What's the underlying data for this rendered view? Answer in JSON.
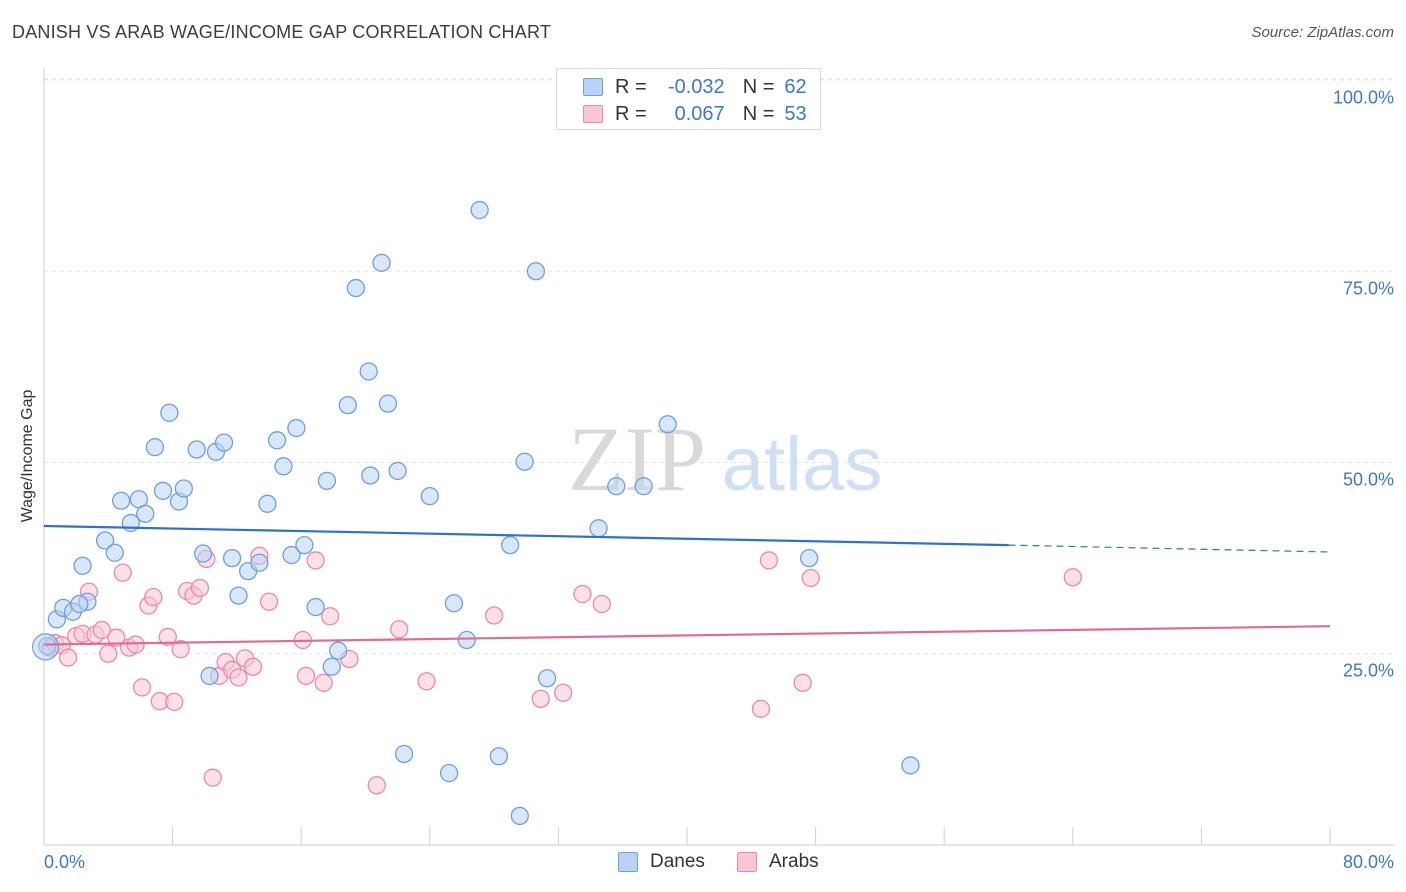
{
  "header": {
    "title": "DANISH VS ARAB WAGE/INCOME GAP CORRELATION CHART",
    "source": "Source: ZipAtlas.com"
  },
  "legend": {
    "rows": [
      {
        "r_label": "R =",
        "r_value": "-0.032",
        "n_label": "N =",
        "n_value": "62"
      },
      {
        "r_label": "R =",
        "r_value": "0.067",
        "n_label": "N =",
        "n_value": "53"
      }
    ]
  },
  "watermark": {
    "zip": "ZIP",
    "atlas": "atlas"
  },
  "colors": {
    "danes_fill": "#b8d3f5",
    "danes_stroke": "#6e9fdc",
    "danes_line": "#2e72c9",
    "arabs_fill": "#f9c6d6",
    "arabs_stroke": "#e98aa8",
    "arabs_line": "#e06b96",
    "tick_text": "#3b78c8"
  },
  "chart_data": {
    "type": "scatter",
    "title": "DANISH VS ARAB WAGE/INCOME GAP CORRELATION CHART",
    "xlabel": "",
    "ylabel": "Wage/Income Gap",
    "xlim": [
      0,
      80
    ],
    "ylim": [
      0,
      105
    ],
    "x_tick_labels": [
      "0.0%",
      "80.0%"
    ],
    "y_ticks": [
      25,
      50,
      75,
      100
    ],
    "y_tick_labels": [
      "25.0%",
      "50.0%",
      "75.0%",
      "100.0%"
    ],
    "grid": true,
    "legend_position": "top-center",
    "series": [
      {
        "name": "Danes",
        "r": -0.032,
        "n": 62,
        "trend": {
          "x0": 0,
          "y0": 41.7,
          "x1": 60,
          "y1": 39.2,
          "dashed_to_x": 80,
          "dashed_to_y": 38.3
        },
        "points": [
          [
            0.2,
            26.0
          ],
          [
            0.8,
            29.5
          ],
          [
            1.2,
            31.0
          ],
          [
            1.8,
            30.5
          ],
          [
            2.4,
            36.5
          ],
          [
            2.7,
            31.8
          ],
          [
            2.2,
            31.5
          ],
          [
            3.8,
            39.8
          ],
          [
            4.4,
            38.2
          ],
          [
            4.8,
            45.0
          ],
          [
            5.4,
            42.1
          ],
          [
            5.9,
            45.2
          ],
          [
            6.3,
            43.3
          ],
          [
            6.9,
            52.0
          ],
          [
            7.4,
            46.3
          ],
          [
            7.8,
            56.5
          ],
          [
            8.4,
            44.9
          ],
          [
            8.7,
            46.6
          ],
          [
            9.5,
            51.7
          ],
          [
            9.9,
            38.1
          ],
          [
            10.3,
            22.1
          ],
          [
            10.7,
            51.4
          ],
          [
            11.2,
            52.6
          ],
          [
            11.7,
            37.5
          ],
          [
            12.1,
            32.6
          ],
          [
            12.7,
            35.8
          ],
          [
            13.4,
            36.9
          ],
          [
            13.9,
            44.6
          ],
          [
            14.5,
            52.9
          ],
          [
            14.9,
            49.5
          ],
          [
            15.4,
            37.9
          ],
          [
            15.7,
            54.5
          ],
          [
            16.2,
            39.2
          ],
          [
            16.9,
            31.1
          ],
          [
            17.6,
            47.6
          ],
          [
            17.9,
            23.3
          ],
          [
            18.3,
            25.4
          ],
          [
            18.9,
            57.5
          ],
          [
            19.4,
            72.8
          ],
          [
            20.2,
            61.9
          ],
          [
            20.3,
            48.3
          ],
          [
            21.0,
            76.1
          ],
          [
            21.4,
            57.7
          ],
          [
            22.0,
            48.9
          ],
          [
            22.4,
            11.9
          ],
          [
            24.0,
            45.6
          ],
          [
            25.2,
            9.4
          ],
          [
            25.5,
            31.6
          ],
          [
            26.3,
            26.8
          ],
          [
            27.1,
            83.0
          ],
          [
            28.3,
            11.6
          ],
          [
            29.0,
            39.2
          ],
          [
            29.6,
            3.8
          ],
          [
            29.9,
            50.1
          ],
          [
            30.6,
            75.0
          ],
          [
            31.3,
            21.8
          ],
          [
            34.5,
            41.4
          ],
          [
            35.6,
            46.9
          ],
          [
            37.3,
            46.9
          ],
          [
            38.8,
            55.0
          ],
          [
            47.6,
            37.5
          ],
          [
            53.9,
            10.4
          ]
        ]
      },
      {
        "name": "Arabs",
        "r": 0.067,
        "n": 53,
        "trend": {
          "x0": 0,
          "y0": 26.2,
          "x1": 80,
          "y1": 28.6
        },
        "points": [
          [
            0.4,
            25.8
          ],
          [
            0.7,
            26.4
          ],
          [
            1.1,
            26.1
          ],
          [
            1.5,
            24.5
          ],
          [
            2.0,
            27.3
          ],
          [
            2.4,
            27.6
          ],
          [
            2.8,
            33.1
          ],
          [
            3.2,
            27.5
          ],
          [
            3.6,
            28.1
          ],
          [
            4.0,
            25.0
          ],
          [
            4.5,
            27.1
          ],
          [
            4.9,
            35.6
          ],
          [
            5.3,
            25.8
          ],
          [
            5.7,
            26.2
          ],
          [
            6.1,
            20.6
          ],
          [
            6.5,
            31.3
          ],
          [
            6.8,
            32.4
          ],
          [
            7.2,
            18.8
          ],
          [
            7.7,
            27.2
          ],
          [
            8.1,
            18.7
          ],
          [
            8.5,
            25.6
          ],
          [
            8.9,
            33.2
          ],
          [
            9.3,
            32.6
          ],
          [
            9.7,
            33.6
          ],
          [
            10.1,
            37.4
          ],
          [
            10.5,
            8.8
          ],
          [
            10.9,
            22.1
          ],
          [
            11.3,
            23.9
          ],
          [
            11.7,
            22.9
          ],
          [
            12.1,
            21.9
          ],
          [
            12.5,
            24.4
          ],
          [
            13.0,
            23.3
          ],
          [
            13.4,
            37.8
          ],
          [
            14.0,
            31.8
          ],
          [
            16.1,
            26.8
          ],
          [
            16.3,
            22.1
          ],
          [
            16.9,
            37.2
          ],
          [
            17.4,
            21.2
          ],
          [
            17.8,
            29.9
          ],
          [
            19.0,
            24.3
          ],
          [
            20.7,
            7.8
          ],
          [
            22.1,
            28.2
          ],
          [
            23.8,
            21.4
          ],
          [
            28.0,
            30.0
          ],
          [
            30.9,
            19.1
          ],
          [
            32.3,
            19.9
          ],
          [
            33.5,
            32.8
          ],
          [
            34.7,
            31.5
          ],
          [
            44.6,
            17.8
          ],
          [
            45.1,
            37.2
          ],
          [
            47.2,
            21.2
          ],
          [
            47.7,
            34.9
          ],
          [
            64.0,
            35.0
          ]
        ]
      }
    ]
  }
}
